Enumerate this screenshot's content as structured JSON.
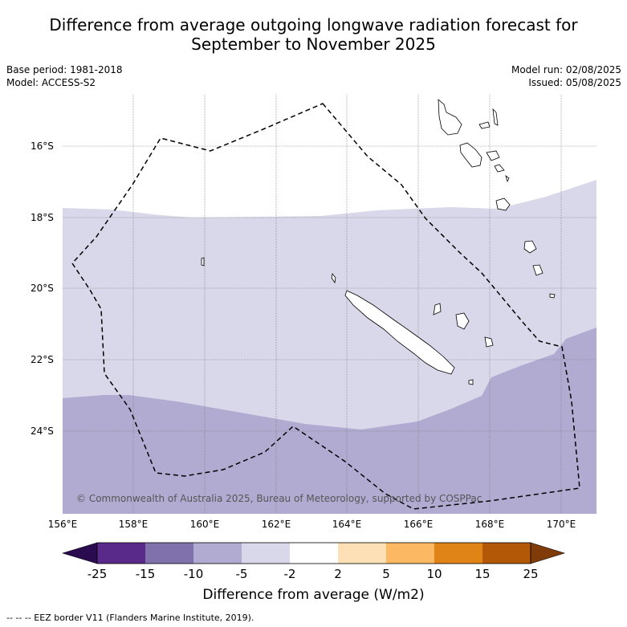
{
  "title_line1": "Difference from average outgoing longwave radiation forecast for",
  "title_line2": "September to November 2025",
  "base_period": "Base period: 1981-2018",
  "model": "Model: ACCESS-S2",
  "model_run": "Model run: 02/08/2025",
  "issued": "Issued: 05/08/2025",
  "copyright": "© Commonwealth of Australia 2025, Bureau of Meteorology, supported by COSPPac",
  "lat_labels": [
    "16°S",
    "18°S",
    "20°S",
    "22°S",
    "24°S"
  ],
  "lon_labels": [
    "156°E",
    "158°E",
    "160°E",
    "162°E",
    "164°E",
    "166°E",
    "168°E",
    "170°E"
  ],
  "colorbar": {
    "title": "Difference from average (W/m2)",
    "ticks": [
      "-25",
      "-15",
      "-10",
      "-5",
      "-2",
      "2",
      "5",
      "10",
      "15",
      "25"
    ],
    "colors": [
      "#2b0b4f",
      "#5a2a8a",
      "#8071ac",
      "#b1abd2",
      "#d9d8ea",
      "#ffffff",
      "#fde0b6",
      "#fcb862",
      "#e08418",
      "#b35806",
      "#7f3b08"
    ]
  },
  "footnote": "--  --  -- EEZ border V11 (Flanders Marine Institute, 2019)."
}
